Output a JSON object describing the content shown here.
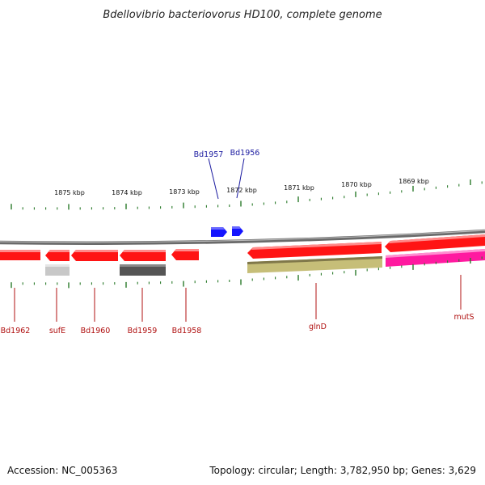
{
  "title": "Bdellovibrio bacteriovorus HD100, complete genome",
  "footer": {
    "accession": "Accession: NC_005363",
    "summary": "Topology: circular; Length: 3,782,950 bp; Genes: 3,629"
  },
  "colors": {
    "backbone": "#888888",
    "tick": "#2a7a2a",
    "forward_label": "#1a1aa0",
    "reverse_label": "#b01010",
    "gene_red": "#ff1a1a",
    "gene_blue": "#1010ff",
    "gene_olive": "#c8c078",
    "gene_magenta": "#ff1aa0",
    "gene_gray_light": "#c8c8c8",
    "gene_gray_dark": "#555555"
  },
  "scale": {
    "unit": "kbp",
    "ticks": [
      {
        "label": "1875 kbp"
      },
      {
        "label": "1874 kbp"
      },
      {
        "label": "1873 kbp"
      },
      {
        "label": "1872 kbp"
      },
      {
        "label": "1871 kbp"
      },
      {
        "label": "1870 kbp"
      },
      {
        "label": "1869 kbp"
      }
    ]
  },
  "genes": [
    {
      "name": "Bd1957",
      "strand": "forward",
      "label_side": "top",
      "color": "blue"
    },
    {
      "name": "Bd1956",
      "strand": "forward",
      "label_side": "top",
      "color": "blue"
    },
    {
      "name": "Bd1962",
      "strand": "reverse",
      "label_side": "bottom",
      "color": "red"
    },
    {
      "name": "sufE",
      "strand": "reverse",
      "label_side": "bottom",
      "color": "red"
    },
    {
      "name": "Bd1960",
      "strand": "reverse",
      "label_side": "bottom",
      "color": "red"
    },
    {
      "name": "Bd1959",
      "strand": "reverse",
      "label_side": "bottom",
      "color": "red"
    },
    {
      "name": "Bd1958",
      "strand": "reverse",
      "label_side": "bottom",
      "color": "red"
    },
    {
      "name": "glnD",
      "strand": "reverse",
      "label_side": "bottom",
      "color": "red"
    },
    {
      "name": "mutS",
      "strand": "reverse",
      "label_side": "bottom",
      "color": "red"
    }
  ]
}
